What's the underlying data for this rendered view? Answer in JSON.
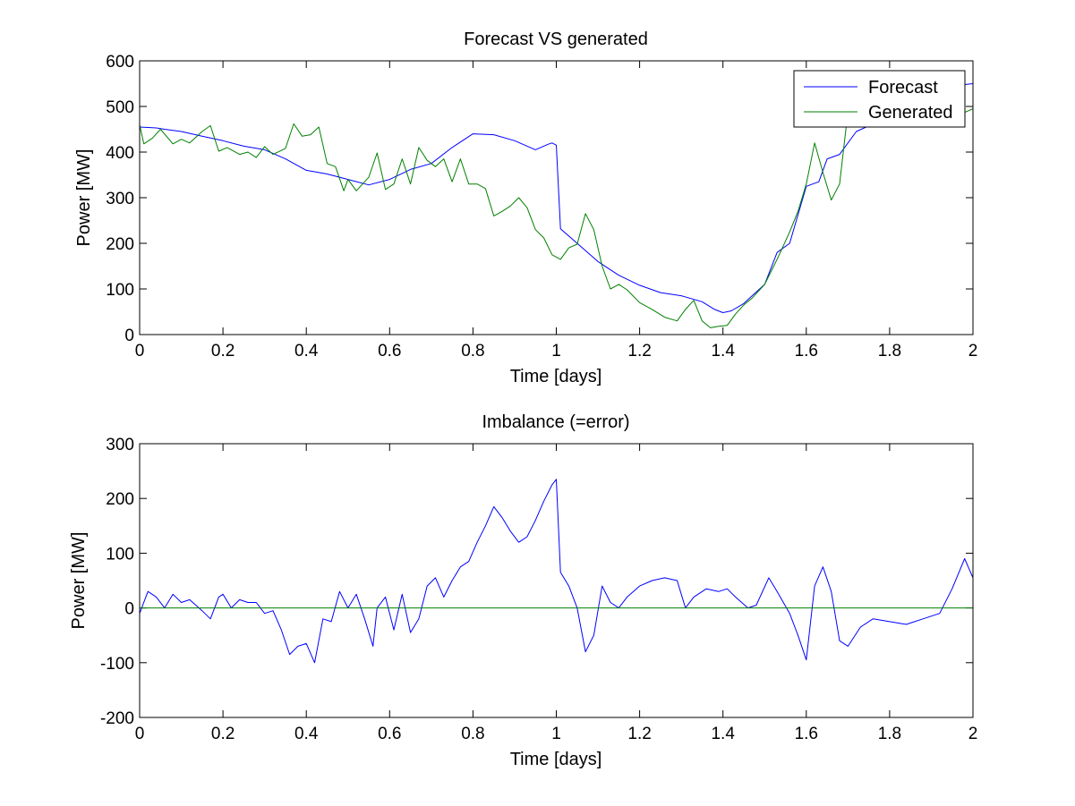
{
  "chart_data": [
    {
      "type": "line",
      "title": "Forecast VS generated",
      "xlabel": "Time [days]",
      "ylabel": "Power [MW]",
      "xlim": [
        0,
        2
      ],
      "ylim": [
        0,
        600
      ],
      "xticks": [
        0,
        0.2,
        0.4,
        0.6,
        0.8,
        1,
        1.2,
        1.4,
        1.6,
        1.8,
        2
      ],
      "xtick_labels": [
        "0",
        "0.2",
        "0.4",
        "0.6",
        "0.8",
        "1",
        "1.2",
        "1.4",
        "1.6",
        "1.8",
        "2"
      ],
      "yticks": [
        0,
        100,
        200,
        300,
        400,
        500,
        600
      ],
      "ytick_labels": [
        "0",
        "100",
        "200",
        "300",
        "400",
        "500",
        "600"
      ],
      "grid": false,
      "legend": {
        "position": "top-right"
      },
      "series": [
        {
          "name": "Forecast",
          "color": "#0000ff",
          "x": [
            0,
            0.04,
            0.06,
            0.1,
            0.15,
            0.2,
            0.25,
            0.3,
            0.35,
            0.4,
            0.45,
            0.5,
            0.55,
            0.6,
            0.65,
            0.7,
            0.75,
            0.8,
            0.85,
            0.9,
            0.95,
            0.98,
            0.99,
            1.0,
            1.01,
            1.05,
            1.1,
            1.15,
            1.2,
            1.25,
            1.3,
            1.35,
            1.38,
            1.4,
            1.42,
            1.45,
            1.47,
            1.5,
            1.53,
            1.56,
            1.6,
            1.63,
            1.65,
            1.68,
            1.72,
            1.8,
            1.85,
            1.9,
            1.95,
            1.98,
            2.0
          ],
          "y": [
            455,
            453,
            450,
            445,
            435,
            425,
            413,
            405,
            385,
            360,
            352,
            340,
            328,
            340,
            362,
            375,
            410,
            440,
            438,
            425,
            405,
            417,
            420,
            415,
            232,
            200,
            160,
            130,
            108,
            92,
            85,
            72,
            55,
            48,
            52,
            68,
            85,
            110,
            180,
            200,
            325,
            335,
            385,
            395,
            445,
            478,
            500,
            510,
            530,
            548,
            550
          ]
        },
        {
          "name": "Generated",
          "color": "#008000",
          "x": [
            0,
            0.01,
            0.03,
            0.05,
            0.08,
            0.1,
            0.12,
            0.15,
            0.17,
            0.19,
            0.21,
            0.24,
            0.26,
            0.28,
            0.3,
            0.32,
            0.35,
            0.37,
            0.39,
            0.41,
            0.43,
            0.45,
            0.47,
            0.49,
            0.5,
            0.52,
            0.55,
            0.57,
            0.59,
            0.61,
            0.63,
            0.65,
            0.67,
            0.69,
            0.71,
            0.73,
            0.75,
            0.77,
            0.79,
            0.81,
            0.83,
            0.85,
            0.87,
            0.89,
            0.91,
            0.93,
            0.95,
            0.97,
            0.99,
            1.01,
            1.03,
            1.05,
            1.07,
            1.09,
            1.11,
            1.13,
            1.15,
            1.17,
            1.2,
            1.23,
            1.26,
            1.29,
            1.31,
            1.33,
            1.35,
            1.37,
            1.39,
            1.41,
            1.43,
            1.45,
            1.47,
            1.5,
            1.53,
            1.56,
            1.58,
            1.6,
            1.62,
            1.64,
            1.66,
            1.68,
            1.7,
            1.73,
            1.76,
            1.8,
            1.85,
            1.9,
            1.95,
            2.0
          ],
          "y": [
            460,
            418,
            430,
            450,
            418,
            428,
            420,
            445,
            458,
            402,
            410,
            395,
            400,
            388,
            412,
            395,
            408,
            462,
            435,
            438,
            455,
            375,
            368,
            315,
            340,
            315,
            345,
            398,
            318,
            330,
            385,
            330,
            410,
            382,
            368,
            385,
            335,
            385,
            330,
            330,
            320,
            260,
            270,
            282,
            300,
            278,
            230,
            212,
            175,
            165,
            190,
            198,
            265,
            230,
            150,
            100,
            110,
            98,
            70,
            55,
            38,
            30,
            55,
            75,
            30,
            15,
            18,
            20,
            45,
            65,
            80,
            110,
            165,
            225,
            270,
            330,
            420,
            355,
            295,
            330,
            490,
            505,
            520,
            490,
            470,
            465,
            475,
            495
          ]
        }
      ]
    },
    {
      "type": "line",
      "title": "Imbalance (=error)",
      "xlabel": "Time [days]",
      "ylabel": "Power [MW]",
      "xlim": [
        0,
        2
      ],
      "ylim": [
        -200,
        300
      ],
      "xticks": [
        0,
        0.2,
        0.4,
        0.6,
        0.8,
        1,
        1.2,
        1.4,
        1.6,
        1.8,
        2
      ],
      "xtick_labels": [
        "0",
        "0.2",
        "0.4",
        "0.6",
        "0.8",
        "1",
        "1.2",
        "1.4",
        "1.6",
        "1.8",
        "2"
      ],
      "yticks": [
        -200,
        -100,
        0,
        100,
        200,
        300
      ],
      "ytick_labels": [
        "-200",
        "-100",
        "0",
        "100",
        "200",
        "300"
      ],
      "grid": false,
      "series": [
        {
          "color": "#0000ff",
          "x": [
            0,
            0.02,
            0.04,
            0.06,
            0.08,
            0.1,
            0.12,
            0.15,
            0.17,
            0.19,
            0.2,
            0.22,
            0.24,
            0.26,
            0.28,
            0.3,
            0.32,
            0.34,
            0.36,
            0.38,
            0.4,
            0.42,
            0.44,
            0.46,
            0.48,
            0.5,
            0.52,
            0.54,
            0.56,
            0.57,
            0.59,
            0.61,
            0.63,
            0.65,
            0.67,
            0.69,
            0.71,
            0.73,
            0.75,
            0.77,
            0.79,
            0.81,
            0.83,
            0.85,
            0.87,
            0.89,
            0.91,
            0.93,
            0.95,
            0.97,
            0.99,
            1.0,
            1.01,
            1.03,
            1.05,
            1.07,
            1.09,
            1.11,
            1.13,
            1.15,
            1.17,
            1.2,
            1.23,
            1.26,
            1.29,
            1.31,
            1.33,
            1.36,
            1.39,
            1.41,
            1.43,
            1.46,
            1.48,
            1.51,
            1.53,
            1.56,
            1.58,
            1.6,
            1.62,
            1.64,
            1.66,
            1.68,
            1.7,
            1.73,
            1.76,
            1.8,
            1.84,
            1.88,
            1.92,
            1.95,
            1.98,
            2.0
          ],
          "y": [
            -10,
            30,
            20,
            0,
            25,
            10,
            15,
            -5,
            -20,
            20,
            25,
            0,
            15,
            10,
            10,
            -10,
            -5,
            -40,
            -85,
            -70,
            -65,
            -100,
            -20,
            -25,
            30,
            0,
            25,
            -20,
            -70,
            0,
            20,
            -40,
            25,
            -45,
            -20,
            40,
            55,
            20,
            50,
            75,
            85,
            120,
            150,
            185,
            165,
            140,
            120,
            130,
            160,
            195,
            225,
            235,
            65,
            40,
            0,
            -80,
            -50,
            40,
            10,
            0,
            20,
            40,
            50,
            55,
            50,
            0,
            20,
            35,
            30,
            35,
            20,
            0,
            5,
            55,
            30,
            -10,
            -50,
            -95,
            40,
            75,
            30,
            -60,
            -70,
            -35,
            -20,
            -25,
            -30,
            -20,
            -10,
            35,
            90,
            55
          ]
        },
        {
          "color": "#008000",
          "x": [
            0,
            2
          ],
          "y": [
            0,
            0
          ]
        }
      ]
    }
  ]
}
